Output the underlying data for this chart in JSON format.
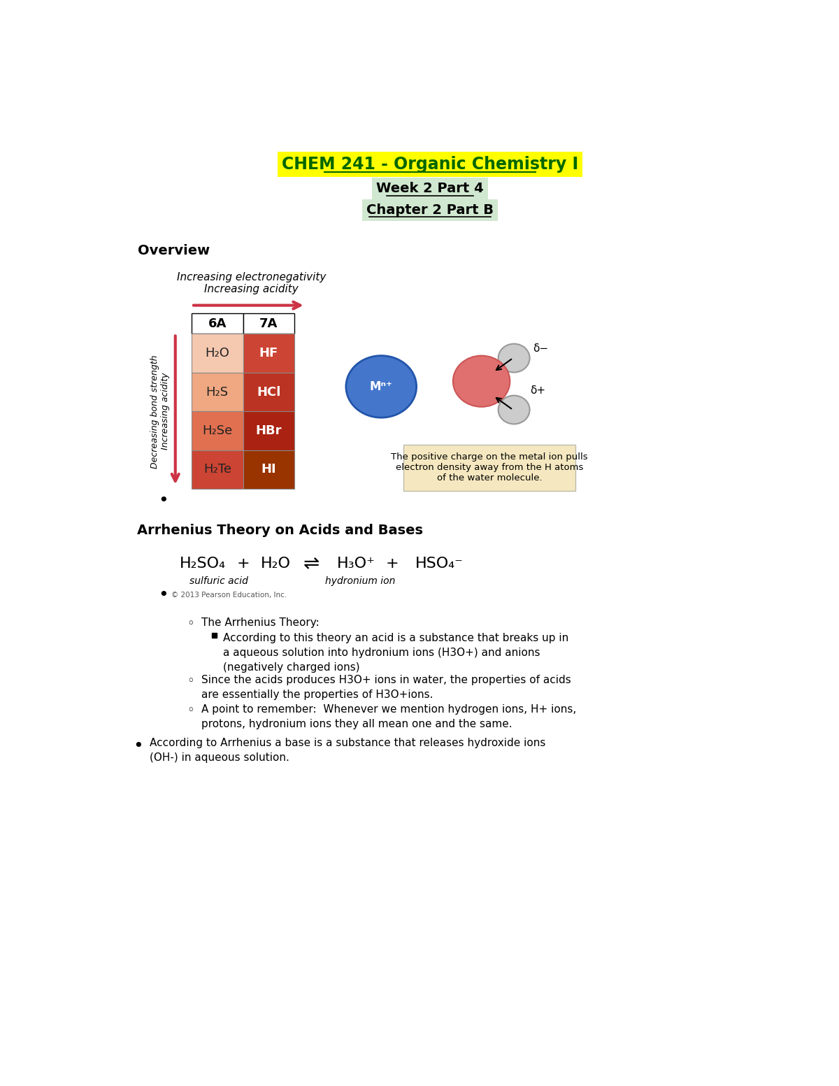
{
  "title_line1": "CHEM 241 - Organic Chemistry I",
  "title_line2": "Week 2 Part 4",
  "title_line3": "Chapter 2 Part B",
  "title_bg_color": "#FFFF00",
  "title_line2_bg": "#D0E8D0",
  "title_line3_bg": "#D0E8D0",
  "overview_label": "Overview",
  "table_header_6A": "6A",
  "table_header_7A": "7A",
  "table_rows": [
    [
      "H₂O",
      "HF"
    ],
    [
      "H₂S",
      "HCl"
    ],
    [
      "H₂Se",
      "HBr"
    ],
    [
      "H₂Te",
      "HI"
    ]
  ],
  "col1_colors": [
    "#F5C8B0",
    "#EFA882",
    "#E07050",
    "#CC4433"
  ],
  "col2_colors": [
    "#CC4433",
    "#BB3322",
    "#AA2211",
    "#993300"
  ],
  "arrow_color": "#CC3344",
  "section2_title": "Arrhenius Theory on Acids and Bases",
  "label1": "sulfuric acid",
  "label2": "hydronium ion",
  "copyright_text": "© 2013 Pearson Education, Inc.",
  "metal_ion_text": "Mⁿ⁺",
  "caption_text": "The positive charge on the metal ion pulls\nelectron density away from the H atoms\nof the water molecule.",
  "caption_bg": "#F5E8C0",
  "delta_minus": "δ−",
  "delta_plus": "δ+"
}
